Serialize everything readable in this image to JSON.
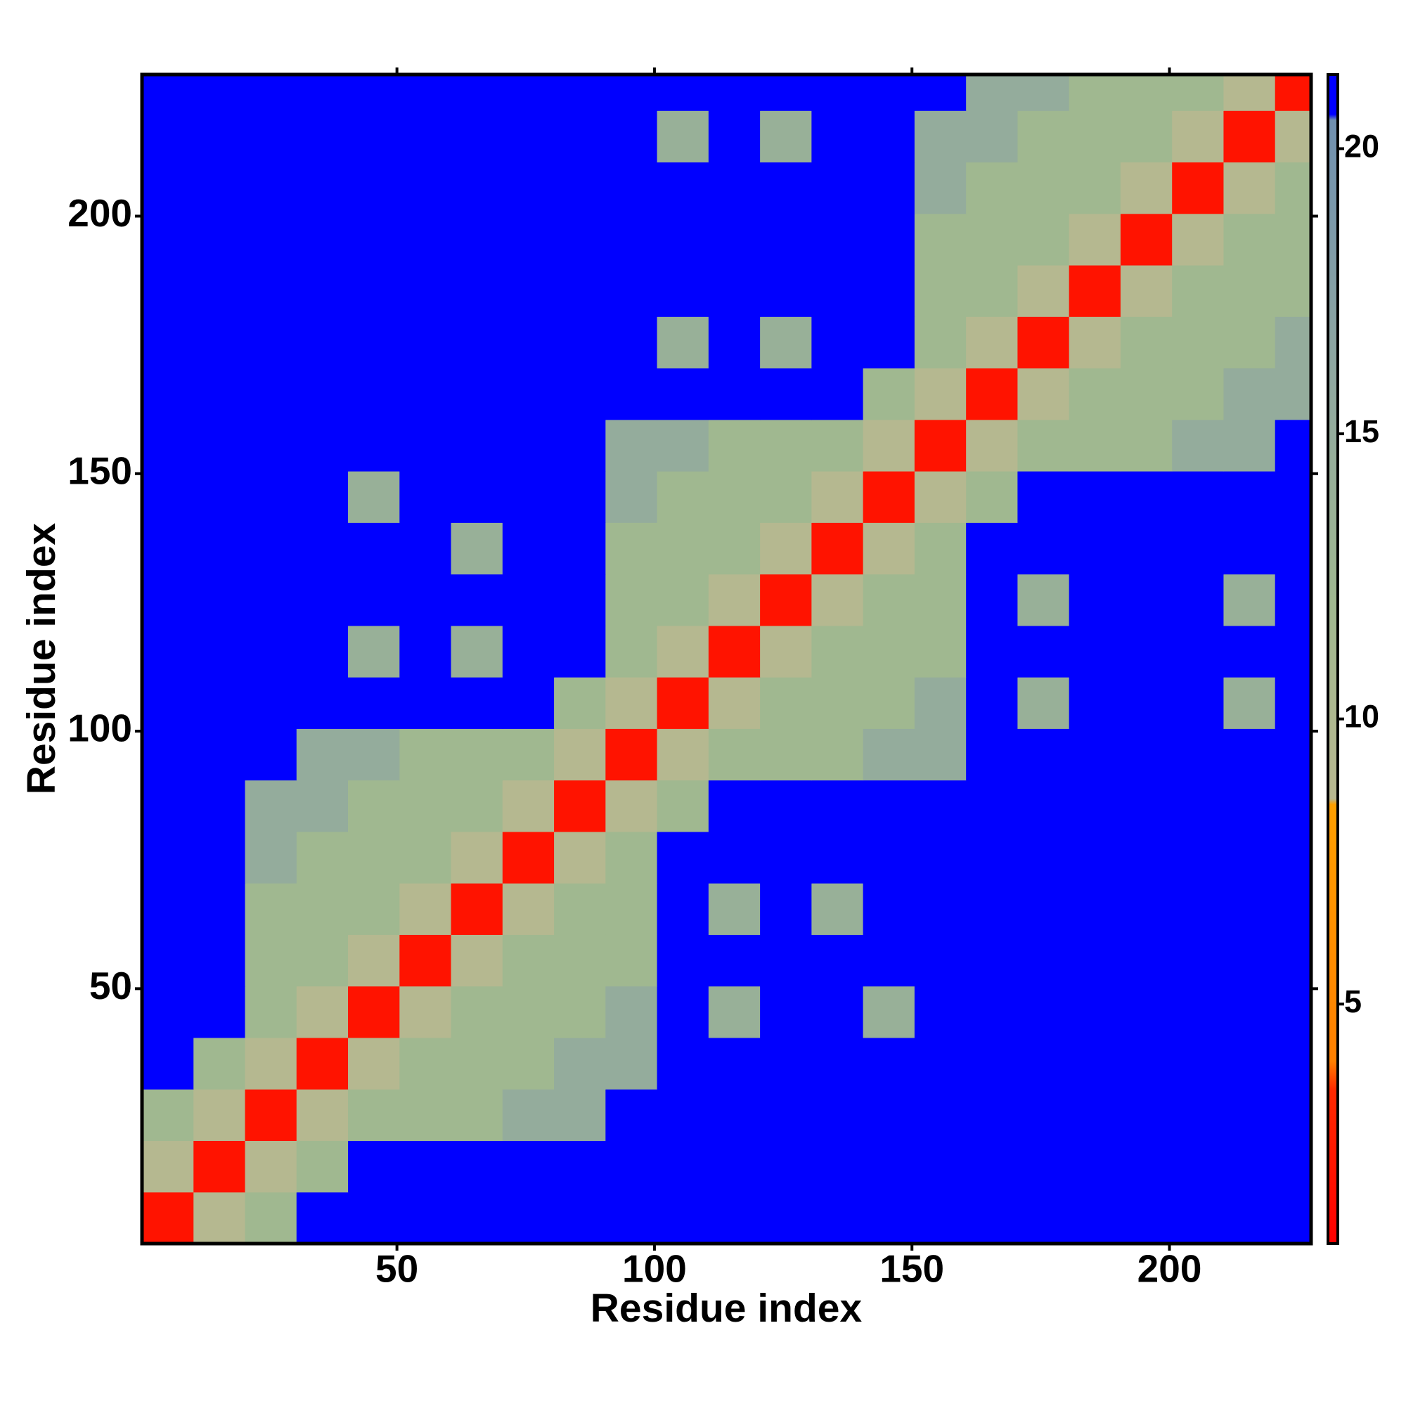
{
  "chart_data": {
    "type": "heatmap",
    "xlabel": "Residue index",
    "ylabel": "Residue index",
    "xlim": [
      0.5,
      227.5
    ],
    "ylim": [
      0.5,
      227.5
    ],
    "xticks": [
      50,
      100,
      150,
      200
    ],
    "yticks": [
      50,
      100,
      150,
      200
    ],
    "xbins": [
      0.5,
      10.5,
      20.5,
      30.5,
      40.5,
      50.5,
      60.5,
      70.5,
      80.5,
      90.5,
      100.5,
      110.5,
      120.5,
      130.5,
      140.5,
      150.5,
      160.5,
      170.5,
      180.5,
      190.5,
      200.5,
      210.5,
      220.5,
      227.5
    ],
    "ybins": [
      0.5,
      10.5,
      20.5,
      30.5,
      40.5,
      50.5,
      60.5,
      70.5,
      80.5,
      90.5,
      100.5,
      110.5,
      120.5,
      130.5,
      140.5,
      150.5,
      160.5,
      170.5,
      180.5,
      190.5,
      200.5,
      210.5,
      220.5,
      227.5
    ],
    "z": [
      [
        2,
        9,
        12,
        21,
        21,
        21,
        21,
        21,
        21,
        21,
        21,
        21,
        21,
        21,
        21,
        21,
        21,
        21,
        21,
        21,
        21,
        21,
        21
      ],
      [
        9,
        2,
        9,
        12,
        21,
        21,
        21,
        21,
        21,
        21,
        21,
        21,
        21,
        21,
        21,
        21,
        21,
        21,
        21,
        21,
        21,
        21,
        21
      ],
      [
        12,
        9,
        2,
        9,
        12,
        12,
        12,
        15,
        15,
        21,
        21,
        21,
        21,
        21,
        21,
        21,
        21,
        21,
        21,
        21,
        21,
        21,
        21
      ],
      [
        21,
        12,
        9,
        2,
        9,
        12,
        12,
        12,
        15,
        15,
        21,
        21,
        21,
        21,
        21,
        21,
        21,
        21,
        21,
        21,
        21,
        21,
        21
      ],
      [
        21,
        21,
        12,
        9,
        2,
        9,
        12,
        12,
        12,
        15,
        21,
        14,
        21,
        21,
        14,
        21,
        21,
        21,
        21,
        21,
        21,
        21,
        21
      ],
      [
        21,
        21,
        12,
        12,
        9,
        2,
        9,
        12,
        12,
        12,
        21,
        21,
        21,
        21,
        21,
        21,
        21,
        21,
        21,
        21,
        21,
        21,
        21
      ],
      [
        21,
        21,
        12,
        12,
        12,
        9,
        2,
        9,
        12,
        12,
        21,
        14,
        21,
        14,
        21,
        21,
        21,
        21,
        21,
        21,
        21,
        21,
        21
      ],
      [
        21,
        21,
        15,
        12,
        12,
        12,
        9,
        2,
        9,
        12,
        21,
        21,
        21,
        21,
        21,
        21,
        21,
        21,
        21,
        21,
        21,
        21,
        21
      ],
      [
        21,
        21,
        15,
        15,
        12,
        12,
        12,
        9,
        2,
        9,
        12,
        21,
        21,
        21,
        21,
        21,
        21,
        21,
        21,
        21,
        21,
        21,
        21
      ],
      [
        21,
        21,
        21,
        15,
        15,
        12,
        12,
        12,
        9,
        2,
        9,
        12,
        12,
        12,
        15,
        15,
        21,
        21,
        21,
        21,
        21,
        21,
        21
      ],
      [
        21,
        21,
        21,
        21,
        21,
        21,
        21,
        21,
        12,
        9,
        2,
        9,
        12,
        12,
        12,
        15,
        21,
        14,
        21,
        21,
        21,
        14,
        21
      ],
      [
        21,
        21,
        21,
        21,
        14,
        21,
        14,
        21,
        21,
        12,
        9,
        2,
        9,
        12,
        12,
        12,
        21,
        21,
        21,
        21,
        21,
        21,
        21
      ],
      [
        21,
        21,
        21,
        21,
        21,
        21,
        21,
        21,
        21,
        12,
        12,
        9,
        2,
        9,
        12,
        12,
        21,
        14,
        21,
        21,
        21,
        14,
        21
      ],
      [
        21,
        21,
        21,
        21,
        21,
        21,
        14,
        21,
        21,
        12,
        12,
        12,
        9,
        2,
        9,
        12,
        21,
        21,
        21,
        21,
        21,
        21,
        21
      ],
      [
        21,
        21,
        21,
        21,
        14,
        21,
        21,
        21,
        21,
        15,
        12,
        12,
        12,
        9,
        2,
        9,
        12,
        21,
        21,
        21,
        21,
        21,
        21
      ],
      [
        21,
        21,
        21,
        21,
        21,
        21,
        21,
        21,
        21,
        15,
        15,
        12,
        12,
        12,
        9,
        2,
        9,
        12,
        12,
        12,
        15,
        15,
        21
      ],
      [
        21,
        21,
        21,
        21,
        21,
        21,
        21,
        21,
        21,
        21,
        21,
        21,
        21,
        21,
        12,
        9,
        2,
        9,
        12,
        12,
        12,
        15,
        15
      ],
      [
        21,
        21,
        21,
        21,
        21,
        21,
        21,
        21,
        21,
        21,
        14,
        21,
        14,
        21,
        21,
        12,
        9,
        2,
        9,
        12,
        12,
        12,
        15
      ],
      [
        21,
        21,
        21,
        21,
        21,
        21,
        21,
        21,
        21,
        21,
        21,
        21,
        21,
        21,
        21,
        12,
        12,
        9,
        2,
        9,
        12,
        12,
        12
      ],
      [
        21,
        21,
        21,
        21,
        21,
        21,
        21,
        21,
        21,
        21,
        21,
        21,
        21,
        21,
        21,
        12,
        12,
        12,
        9,
        2,
        9,
        12,
        12
      ],
      [
        21,
        21,
        21,
        21,
        21,
        21,
        21,
        21,
        21,
        21,
        21,
        21,
        21,
        21,
        21,
        15,
        12,
        12,
        12,
        9,
        2,
        9,
        12
      ],
      [
        21,
        21,
        21,
        21,
        21,
        21,
        21,
        21,
        21,
        21,
        14,
        21,
        14,
        21,
        21,
        15,
        15,
        12,
        12,
        12,
        9,
        2,
        9
      ],
      [
        21,
        21,
        21,
        21,
        21,
        21,
        21,
        21,
        21,
        21,
        21,
        21,
        21,
        21,
        21,
        21,
        15,
        15,
        12,
        12,
        12,
        9,
        2
      ]
    ],
    "colorbar_lim": [
      0.8,
      21.3
    ],
    "colorbar_ticks": [
      5,
      10,
      15,
      20
    ],
    "colorscale": [
      [
        0.8,
        "#ff0000"
      ],
      [
        3.5,
        "#ff2a00"
      ],
      [
        4,
        "#ff8000"
      ],
      [
        8.5,
        "#ffa000"
      ],
      [
        8.6,
        "#b8b890"
      ],
      [
        12,
        "#a0b890"
      ],
      [
        16,
        "#90a8a0"
      ],
      [
        20.5,
        "#7090b0"
      ],
      [
        20.6,
        "#0000ff"
      ],
      [
        21.3,
        "#0000ff"
      ]
    ]
  }
}
